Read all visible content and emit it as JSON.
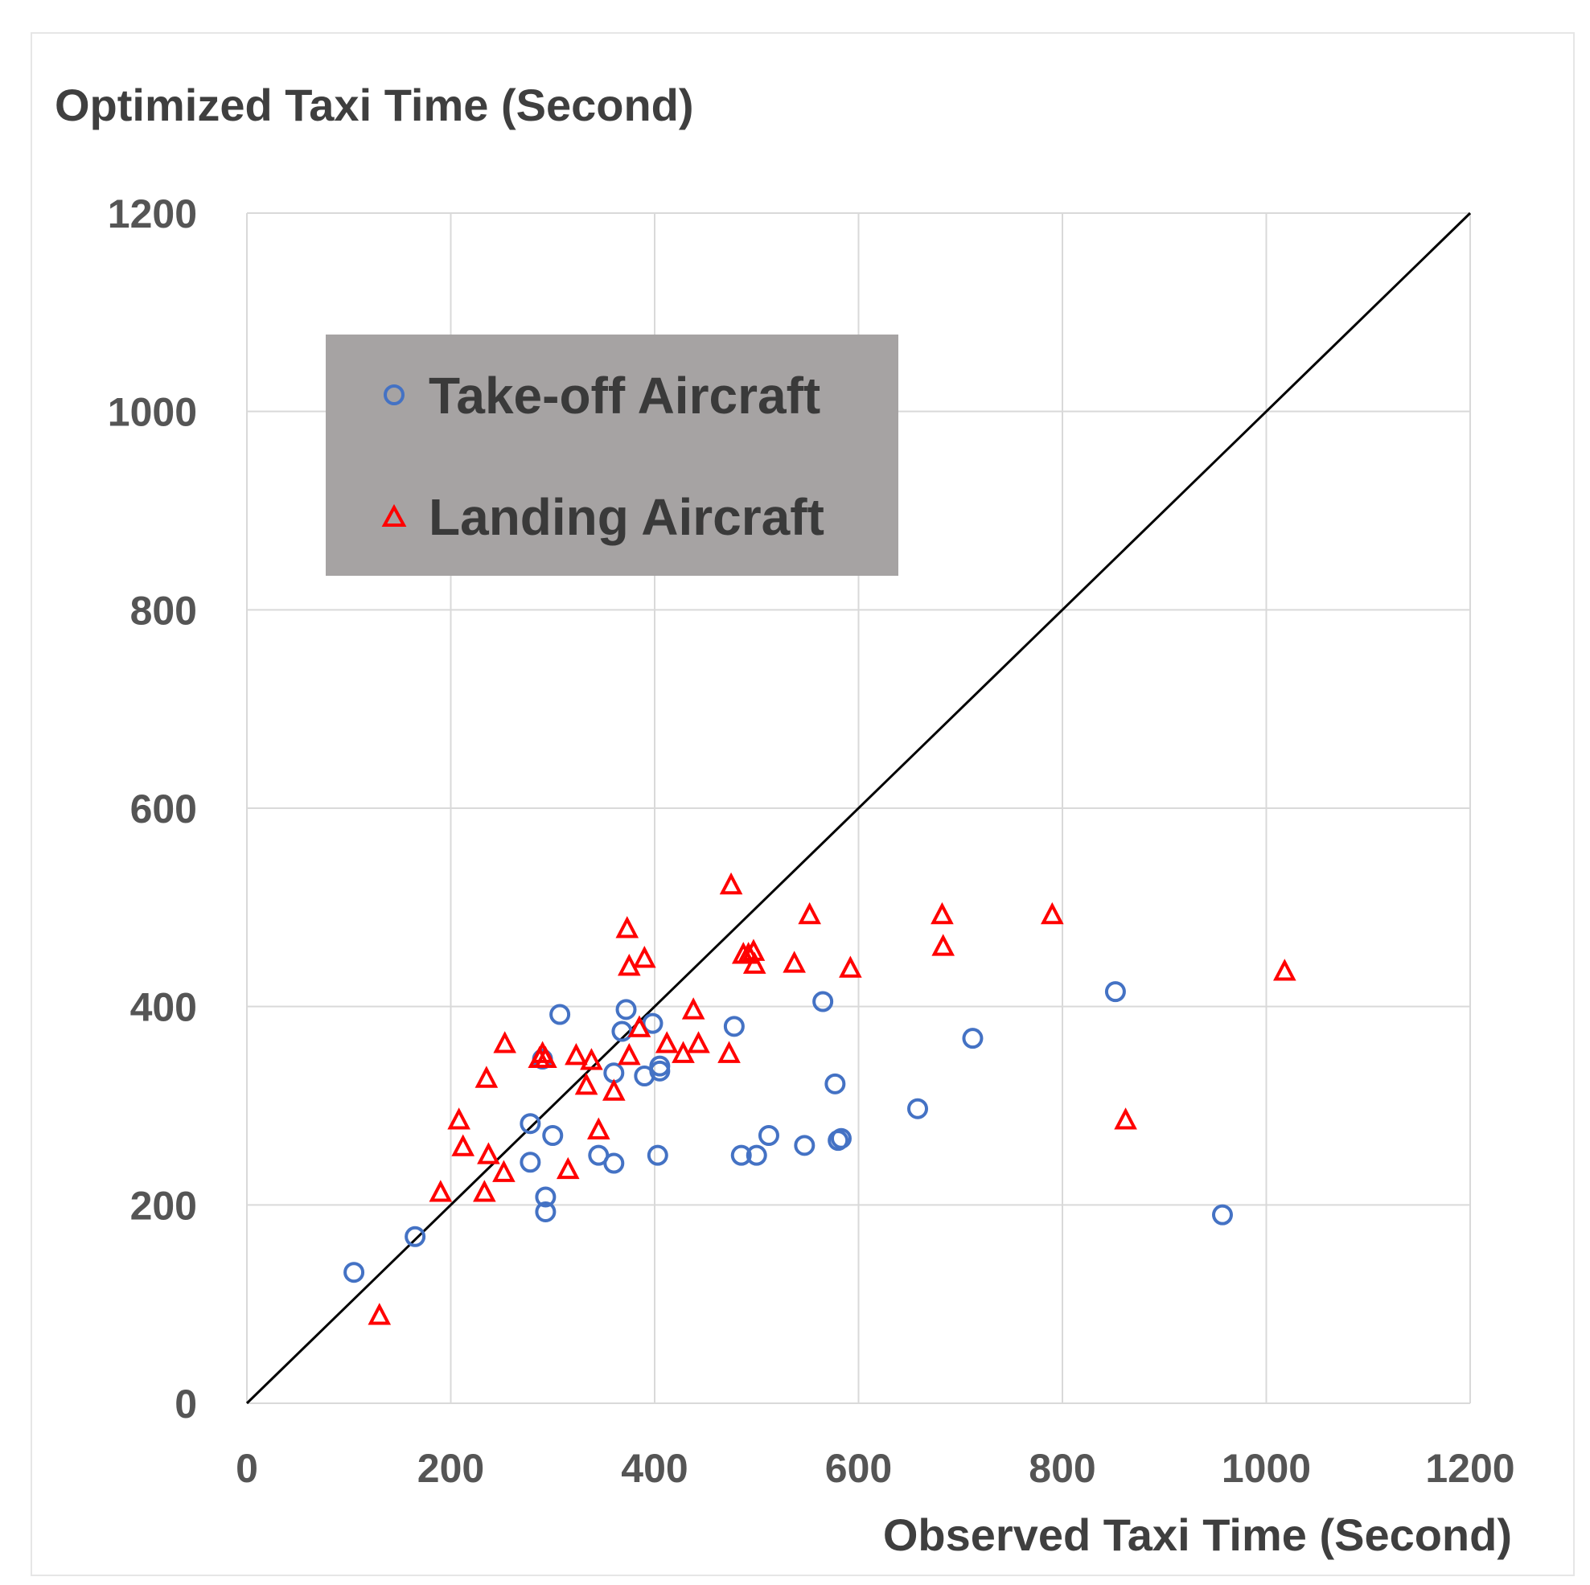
{
  "chart_data": {
    "type": "scatter",
    "title": "",
    "ylabel": "Optimized Taxi Time (Second)",
    "xlabel": "Observed Taxi Time (Second)",
    "xlim": [
      0,
      1200
    ],
    "ylim": [
      0,
      1200
    ],
    "x_ticks": [
      "0",
      "200",
      "400",
      "600",
      "800",
      "1000",
      "1200"
    ],
    "y_ticks": [
      "0",
      "200",
      "400",
      "600",
      "800",
      "1000",
      "1200"
    ],
    "grid": true,
    "legend_position": "upper-left",
    "reference_line": {
      "from": [
        0,
        0
      ],
      "to": [
        1200,
        1200
      ],
      "color": "#000000"
    },
    "series": [
      {
        "name": "Take-off Aircraft",
        "marker": "circle",
        "color": "#4472C4",
        "points": [
          [
            105,
            132
          ],
          [
            165,
            168
          ],
          [
            278,
            282
          ],
          [
            278,
            243
          ],
          [
            300,
            270
          ],
          [
            293,
            208
          ],
          [
            293,
            193
          ],
          [
            290,
            347
          ],
          [
            307,
            392
          ],
          [
            345,
            250
          ],
          [
            360,
            242
          ],
          [
            360,
            333
          ],
          [
            368,
            375
          ],
          [
            372,
            397
          ],
          [
            398,
            383
          ],
          [
            390,
            330
          ],
          [
            405,
            340
          ],
          [
            405,
            335
          ],
          [
            403,
            250
          ],
          [
            478,
            380
          ],
          [
            485,
            250
          ],
          [
            500,
            250
          ],
          [
            512,
            270
          ],
          [
            547,
            260
          ],
          [
            565,
            405
          ],
          [
            577,
            322
          ],
          [
            580,
            265
          ],
          [
            583,
            267
          ],
          [
            658,
            297
          ],
          [
            712,
            368
          ],
          [
            852,
            415
          ],
          [
            957,
            190
          ]
        ]
      },
      {
        "name": "Landing Aircraft",
        "marker": "triangle",
        "color": "#FF0000",
        "points": [
          [
            130,
            88
          ],
          [
            190,
            212
          ],
          [
            208,
            285
          ],
          [
            212,
            258
          ],
          [
            233,
            212
          ],
          [
            235,
            327
          ],
          [
            237,
            250
          ],
          [
            252,
            232
          ],
          [
            253,
            362
          ],
          [
            287,
            347
          ],
          [
            290,
            352
          ],
          [
            293,
            347
          ],
          [
            315,
            235
          ],
          [
            323,
            350
          ],
          [
            333,
            320
          ],
          [
            338,
            345
          ],
          [
            345,
            275
          ],
          [
            360,
            314
          ],
          [
            375,
            350
          ],
          [
            373,
            478
          ],
          [
            375,
            440
          ],
          [
            385,
            378
          ],
          [
            390,
            448
          ],
          [
            412,
            362
          ],
          [
            428,
            352
          ],
          [
            438,
            396
          ],
          [
            443,
            362
          ],
          [
            475,
            522
          ],
          [
            473,
            352
          ],
          [
            487,
            452
          ],
          [
            492,
            452
          ],
          [
            497,
            455
          ],
          [
            498,
            442
          ],
          [
            537,
            443
          ],
          [
            552,
            492
          ],
          [
            592,
            438
          ],
          [
            682,
            492
          ],
          [
            683,
            460
          ],
          [
            790,
            492
          ],
          [
            862,
            285
          ],
          [
            1018,
            435
          ]
        ]
      }
    ]
  }
}
